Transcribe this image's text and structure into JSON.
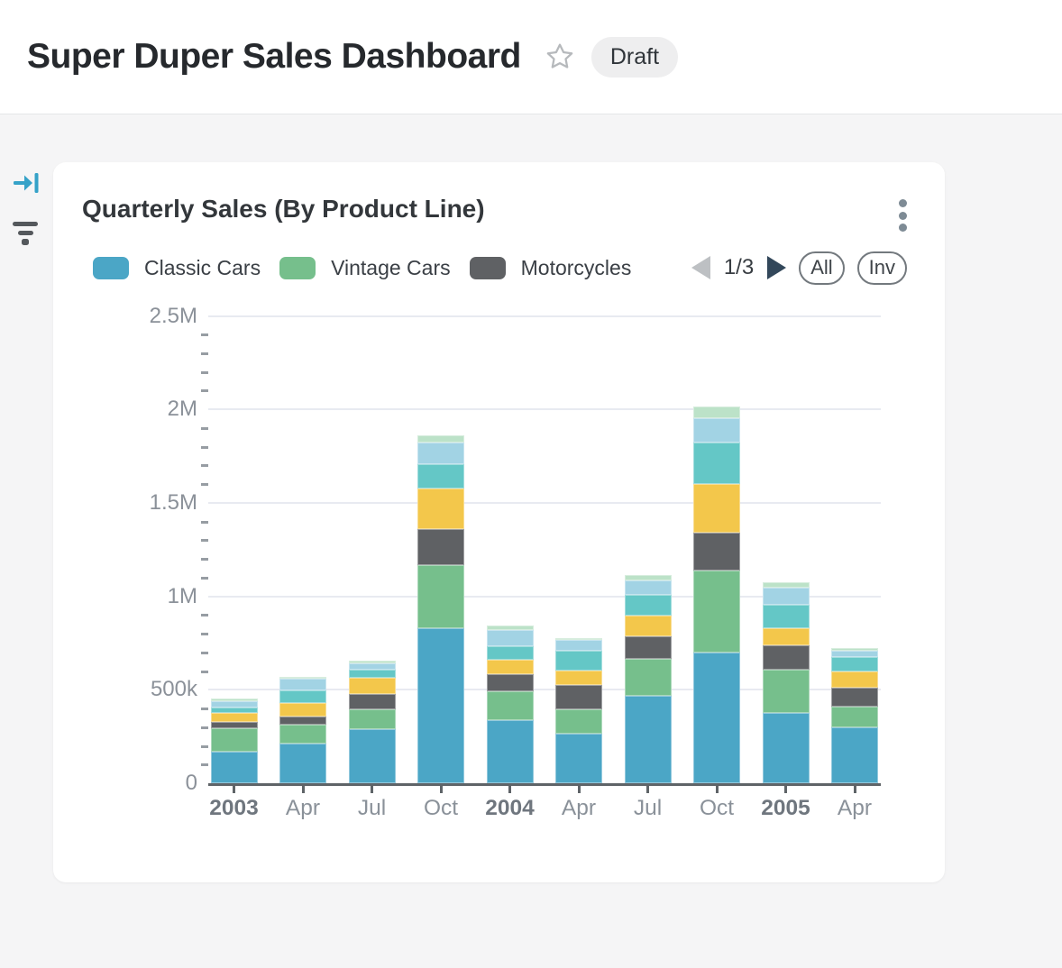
{
  "header": {
    "title": "Super Duper Sales Dashboard",
    "badge": "Draft"
  },
  "rail": {
    "collapse_icon": "arrow-to-bar",
    "filter_icon": "filter-lines"
  },
  "card": {
    "title": "Quarterly Sales (By Product Line)",
    "menu_icon": "kebab-vertical"
  },
  "legend_controls": {
    "page_indicator": "1/3",
    "prev_enabled": false,
    "next_enabled": true,
    "all_button": "All",
    "inv_button": "Inv"
  },
  "colors": {
    "accent_blue": "#35a2c8",
    "next_arrow": "#32475a",
    "prev_arrow": "#bdc0c3",
    "gridline": "#e8eaf1",
    "axis": "#5f6468",
    "badge_bg": "#eeeeef",
    "page_bg": "#f5f5f6"
  },
  "chart_data": {
    "type": "bar",
    "stacked": true,
    "title": "Quarterly Sales (By Product Line)",
    "xlabel": "",
    "ylabel": "",
    "ylim": [
      0,
      2500000
    ],
    "grid": true,
    "legend_position": "top",
    "legend_note_pages": "1/3",
    "y_ticks": [
      {
        "label": "0",
        "value": 0
      },
      {
        "label": "500k",
        "value": 500000
      },
      {
        "label": "1M",
        "value": 1000000
      },
      {
        "label": "1.5M",
        "value": 1500000
      },
      {
        "label": "2M",
        "value": 2000000
      },
      {
        "label": "2.5M",
        "value": 2500000
      }
    ],
    "categories": [
      {
        "label": "2003",
        "bold": true
      },
      {
        "label": "Apr",
        "bold": false
      },
      {
        "label": "Jul",
        "bold": false
      },
      {
        "label": "Oct",
        "bold": false
      },
      {
        "label": "2004",
        "bold": true
      },
      {
        "label": "Apr",
        "bold": false
      },
      {
        "label": "Jul",
        "bold": false
      },
      {
        "label": "Oct",
        "bold": false
      },
      {
        "label": "2005",
        "bold": true
      },
      {
        "label": "Apr",
        "bold": false
      }
    ],
    "series": [
      {
        "name": "Classic Cars",
        "in_legend": true,
        "color": "#4BA6C6",
        "values": [
          170000,
          213000,
          288000,
          829000,
          337000,
          265000,
          469000,
          701000,
          377000,
          300000
        ]
      },
      {
        "name": "Vintage Cars",
        "in_legend": true,
        "color": "#76BF8C",
        "values": [
          124000,
          101000,
          108000,
          339000,
          155000,
          131000,
          197000,
          435000,
          230000,
          111000
        ]
      },
      {
        "name": "Motorcycles",
        "in_legend": true,
        "color": "#5F6164",
        "values": [
          36000,
          43000,
          80000,
          192000,
          93000,
          128000,
          122000,
          202000,
          133000,
          99000
        ]
      },
      {
        "name": "",
        "in_legend": false,
        "color": "#F3C74B",
        "values": [
          48000,
          72000,
          87000,
          216000,
          75000,
          77000,
          110000,
          263000,
          88000,
          89000
        ]
      },
      {
        "name": "",
        "in_legend": false,
        "color": "#64C7C6",
        "values": [
          28000,
          67000,
          45000,
          130000,
          75000,
          106000,
          110000,
          221000,
          125000,
          76000
        ]
      },
      {
        "name": "",
        "in_legend": false,
        "color": "#A2D3E4",
        "values": [
          32000,
          61000,
          32000,
          118000,
          85000,
          58000,
          75000,
          131000,
          91000,
          36000
        ]
      },
      {
        "name": "",
        "in_legend": false,
        "color": "#BCE2C8",
        "values": [
          13000,
          13000,
          16000,
          37000,
          22000,
          13000,
          31000,
          64000,
          32000,
          14000
        ]
      }
    ]
  }
}
